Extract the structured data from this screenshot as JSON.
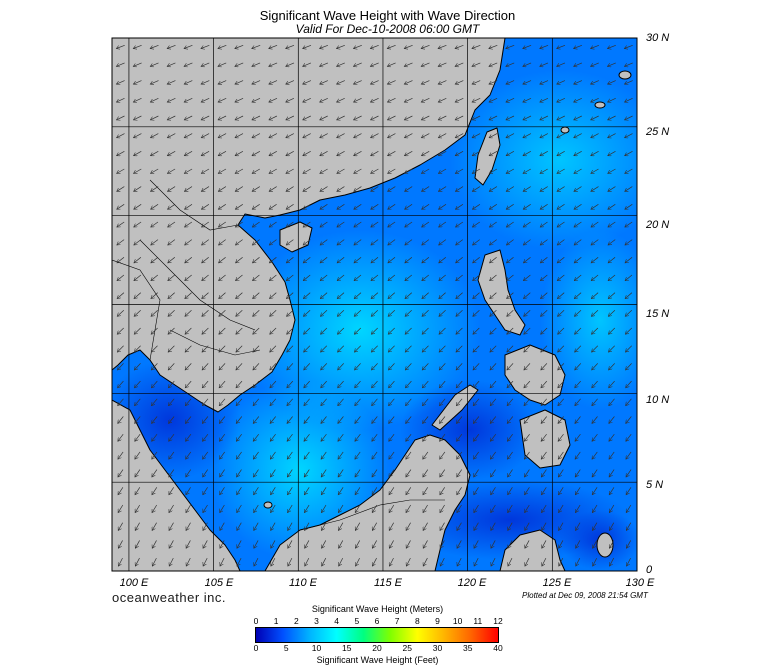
{
  "header": {
    "title": "Significant Wave Height with Wave Direction",
    "subtitle": "Valid For Dec-10-2008 06:00 GMT"
  },
  "map": {
    "lon_labels": [
      "100 E",
      "105 E",
      "110 E",
      "115 E",
      "120 E",
      "125 E",
      "130 E"
    ],
    "lat_labels": [
      "30 N",
      "25 N",
      "20 N",
      "15 N",
      "10 N",
      "5 N",
      "0"
    ],
    "lon_range": [
      99,
      130
    ],
    "lat_range": [
      0,
      30
    ],
    "land_color": "#c0c0c0",
    "gridline_color": "#000000"
  },
  "footer": {
    "brand": "oceanweather inc.",
    "plotted": "Plotted at Dec 09, 2008 21:54 GMT"
  },
  "colorbar": {
    "meters_title": "Significant Wave Height (Meters)",
    "feet_title": "Significant Wave Height (Feet)",
    "meter_ticks": [
      "0",
      "1",
      "2",
      "3",
      "4",
      "5",
      "6",
      "7",
      "8",
      "9",
      "10",
      "11",
      "12"
    ],
    "feet_ticks": [
      "0",
      "5",
      "10",
      "15",
      "20",
      "25",
      "30",
      "35",
      "40"
    ],
    "colors": [
      "#0000b4",
      "#0050ff",
      "#00b4ff",
      "#00ffff",
      "#00ff80",
      "#80ff00",
      "#ffff00",
      "#ffb400",
      "#ff6400",
      "#ff0000"
    ]
  }
}
